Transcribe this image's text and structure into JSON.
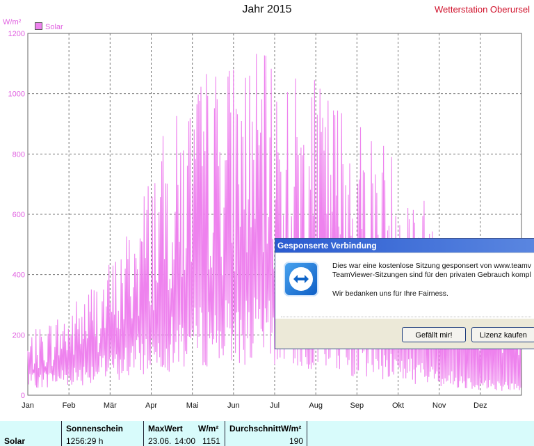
{
  "chart_title": "Jahr 2015",
  "station_label": "Wetterstation Oberursel",
  "unit_label": "W/m²",
  "legend_label": "Solar",
  "chart_data": {
    "type": "line",
    "title": "Jahr 2015",
    "xlabel": "",
    "ylabel": "W/m²",
    "ylim": [
      0,
      1200
    ],
    "yticks": [
      0,
      200,
      400,
      600,
      800,
      1000,
      1200
    ],
    "xticks": [
      "Jan",
      "Feb",
      "Mär",
      "Apr",
      "Mai",
      "Jun",
      "Jul",
      "Aug",
      "Sep",
      "Okt",
      "Nov",
      "Dez"
    ],
    "grid": true,
    "legend": "top-left",
    "series": [
      {
        "name": "Solar",
        "color": "#ee82ee",
        "monthly_peak_approx": [
          200,
          310,
          480,
          860,
          1100,
          1150,
          1080,
          1000,
          860,
          640,
          430,
          300
        ],
        "monthly_average_approx": [
          70,
          100,
          150,
          250,
          310,
          330,
          290,
          220,
          160,
          100,
          60,
          40
        ]
      }
    ]
  },
  "stats": {
    "row_label": "Solar",
    "sunshine_header": "Sonnenschein",
    "sunshine_value": "1256:29 h",
    "max_header": "MaxWert",
    "max_unit": "W/m²",
    "max_date": "23.06.",
    "max_time": "14:00",
    "max_value": "1151",
    "avg_header": "Durchschnitt",
    "avg_unit": "W/m²",
    "avg_value": "190"
  },
  "dialog": {
    "title": "Gesponserte Verbindung",
    "line1": "Dies war eine kostenlose Sitzung gesponsert von www.teamv",
    "line2": "TeamViewer-Sitzungen sind für den privaten Gebrauch kompl",
    "line3": "Wir bedanken uns für Ihre Fairness.",
    "like_button": "Gefällt mir!",
    "buy_button": "Lizenz kaufen"
  }
}
